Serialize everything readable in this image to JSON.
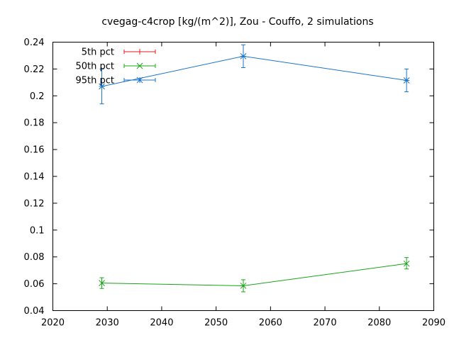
{
  "chart_data": {
    "type": "line",
    "title": "cvegag-c4crop [kg/(m^2)], Zou - Couffo, 2 simulations",
    "xlabel": "",
    "ylabel": "",
    "xlim": [
      2020,
      2090
    ],
    "ylim": [
      0.04,
      0.24
    ],
    "xticks": [
      2020,
      2030,
      2040,
      2050,
      2060,
      2070,
      2080,
      2090
    ],
    "yticks": [
      0.04,
      0.06,
      0.08,
      0.1,
      0.12,
      0.14,
      0.16,
      0.18,
      0.2,
      0.22,
      0.24
    ],
    "ytick_labels": [
      "0.04",
      "0.06",
      "0.08",
      "0.1",
      "0.12",
      "0.14",
      "0.16",
      "0.18",
      "0.2",
      "0.22",
      "0.24"
    ],
    "grid": false,
    "legend_position": "top-left",
    "series": [
      {
        "name": "5th pct",
        "color": "#e41a1c",
        "marker": "plus",
        "points": []
      },
      {
        "name": "50th pct",
        "color": "#1aa31a",
        "marker": "x",
        "points": [
          {
            "x": 2029,
            "y": 0.0605,
            "low": 0.0565,
            "high": 0.0645
          },
          {
            "x": 2055,
            "y": 0.0585,
            "low": 0.054,
            "high": 0.063
          },
          {
            "x": 2085,
            "y": 0.075,
            "low": 0.071,
            "high": 0.0795
          }
        ]
      },
      {
        "name": "95th pct",
        "color": "#1a75c9",
        "marker": "star",
        "points": [
          {
            "x": 2029,
            "y": 0.207,
            "low": 0.194,
            "high": 0.22
          },
          {
            "x": 2055,
            "y": 0.2295,
            "low": 0.221,
            "high": 0.238
          },
          {
            "x": 2085,
            "y": 0.2115,
            "low": 0.203,
            "high": 0.22
          }
        ]
      }
    ]
  }
}
